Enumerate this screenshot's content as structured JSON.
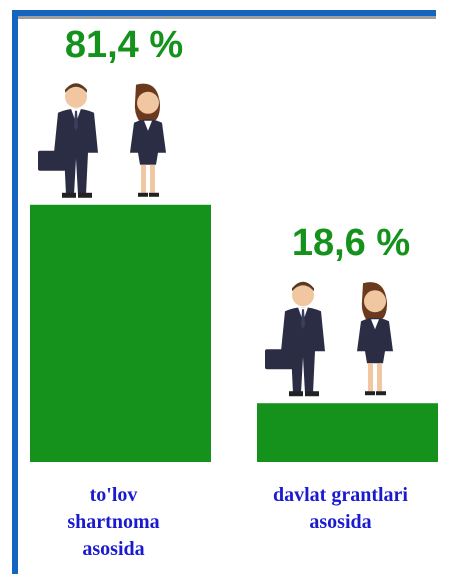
{
  "chart_data": {
    "type": "bar",
    "categories": [
      "to'lov shartnoma asosida",
      "davlat grantlari asosida"
    ],
    "values": [
      81.4,
      18.6
    ],
    "value_labels": [
      "81,4 %",
      "18,6 %"
    ],
    "color": "#14921c"
  }
}
